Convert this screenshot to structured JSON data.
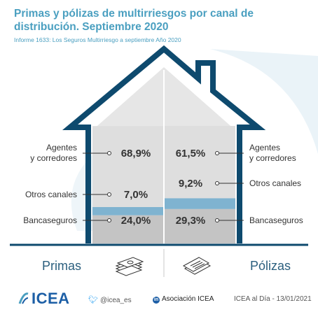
{
  "title": "Primas y pólizas de multirriesgos por canal de distribución. Septiembre 2020",
  "subtitle": "Informe 1633: Los Seguros Multirriesgo a septiembre Año 2020",
  "chart_data": {
    "type": "bar",
    "stacked": true,
    "categories": [
      "Primas",
      "Pólizas"
    ],
    "stack_order": [
      "Bancaseguros",
      "Otros canales",
      "Agentes y corredores"
    ],
    "series": [
      {
        "name": "Agentes y corredores",
        "values": [
          68.9,
          61.5
        ],
        "labels": [
          "68,9%",
          "61,5%"
        ],
        "color": "#dedede"
      },
      {
        "name": "Otros canales",
        "values": [
          7.0,
          9.2
        ],
        "labels": [
          "7,0%",
          "9,2%"
        ],
        "color": "#7fb3d0"
      },
      {
        "name": "Bancaseguros",
        "values": [
          24.0,
          29.3
        ],
        "labels": [
          "24,0%",
          "29,3%"
        ],
        "color": "#c4c4c4"
      }
    ],
    "left_labels": {
      "agentes": [
        "Agentes",
        "y corredores"
      ],
      "otros": "Otros canales",
      "banca": "Bancaseguros"
    },
    "right_labels": {
      "agentes": [
        "Agentes",
        "y corredores"
      ],
      "otros": "Otros canales",
      "banca": "Bancaseguros"
    },
    "ylim": [
      0,
      100
    ],
    "legend": "none",
    "grid": false
  },
  "icons": {
    "primas": "money-stack-icon",
    "polizas": "documents-icon"
  },
  "footer": {
    "logo": "ICEA",
    "twitter": "@icea_es",
    "linkedin": "Asociación ICEA",
    "date": "ICEA al Día - 13/01/2021"
  },
  "colors": {
    "house_outline": "#0e4a6e",
    "accent": "#4a9fc0",
    "agentes": "#dedede",
    "otros": "#7fb3d0",
    "banca": "#c4c4c4",
    "baseline": "#0e4a6e"
  }
}
